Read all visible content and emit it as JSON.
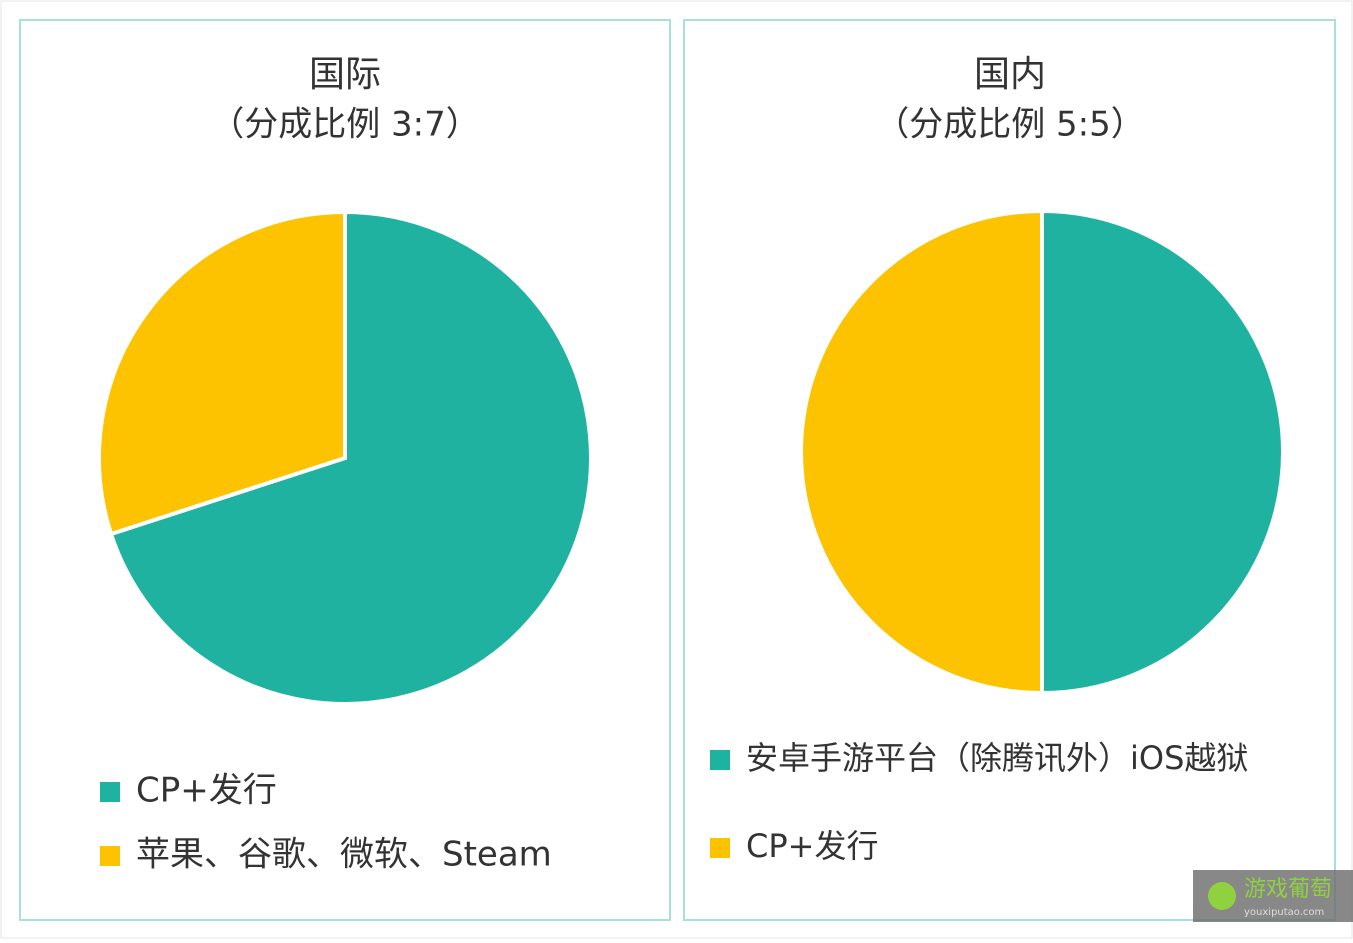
{
  "chart_data": [
    {
      "type": "pie",
      "title": "国际",
      "subtitle": "（分成比例 3:7）",
      "categories": [
        "CP+发行",
        "苹果、谷歌、微软、Steam"
      ],
      "values": [
        70,
        30
      ],
      "colors": [
        "#20b2a0",
        "#fdc300"
      ]
    },
    {
      "type": "pie",
      "title": "国内",
      "subtitle": "（分成比例 5:5）",
      "categories": [
        "安卓手游平台（除腾讯外）iOS越狱",
        "CP+发行"
      ],
      "values": [
        50,
        50
      ],
      "colors": [
        "#20b2a0",
        "#fdc300"
      ]
    }
  ],
  "watermark": {
    "name": "游戏葡萄",
    "url": "youxiputao.com"
  }
}
